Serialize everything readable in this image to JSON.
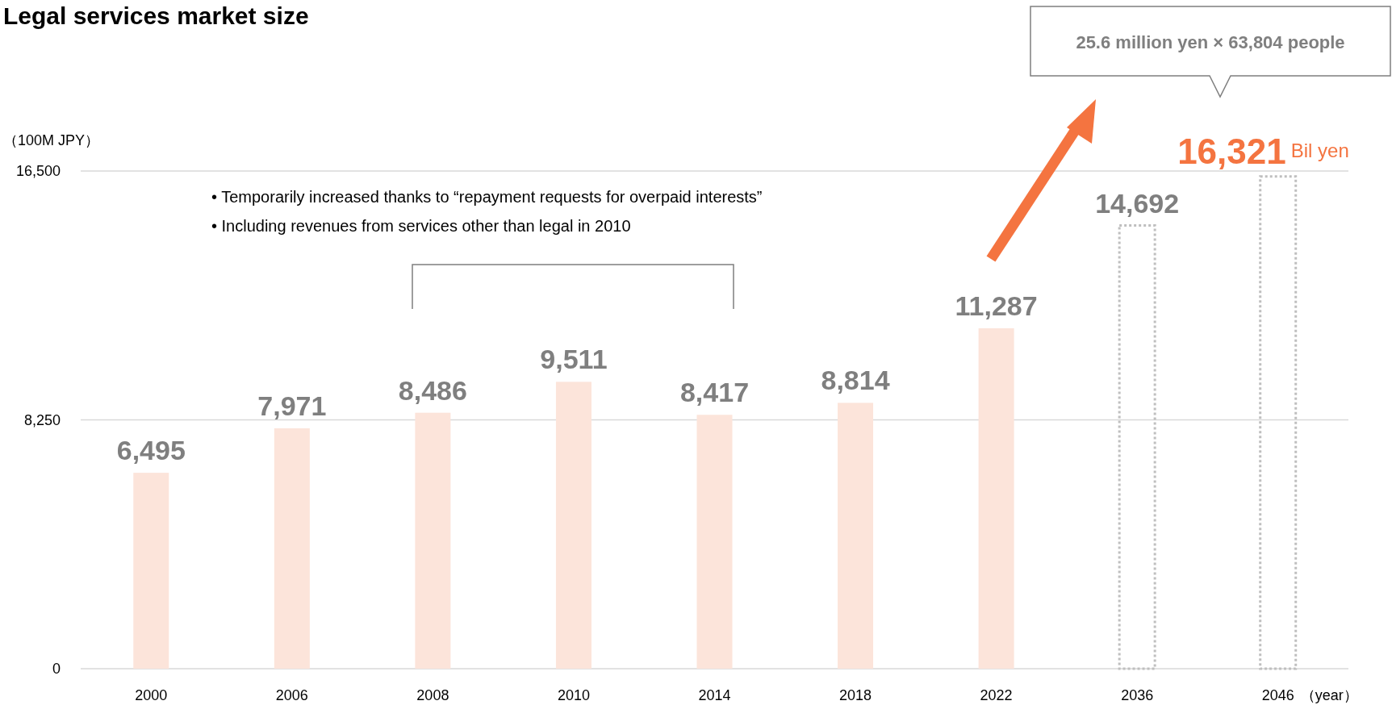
{
  "chart_data": {
    "type": "bar",
    "title": "Legal services market size",
    "ylabel": "（100M JPY）",
    "xlabel": "（year）",
    "categories": [
      "2000",
      "2006",
      "2008",
      "2010",
      "2014",
      "2018",
      "2022",
      "2036",
      "2046"
    ],
    "series": [
      {
        "color": "#fce4da",
        "values": [
          6495,
          7971,
          8486,
          9511,
          8417,
          8814,
          11287,
          null,
          null
        ],
        "value_labels": [
          "6,495",
          "7,971",
          "8,486",
          "9,511",
          "8,417",
          "8,814",
          "11,287",
          null,
          null
        ]
      },
      {
        "color": "#bfbfbf",
        "line_style": "dotted",
        "values": [
          null,
          null,
          null,
          null,
          null,
          null,
          null,
          14692,
          16321
        ],
        "value_labels": [
          null,
          null,
          null,
          null,
          null,
          null,
          null,
          "14,692",
          "16,321"
        ]
      }
    ],
    "ylim": [
      0,
      16500
    ],
    "yticks": [
      0,
      {
        "value": 8250,
        "label": "8,250"
      },
      {
        "value": 16500,
        "label": "16,500"
      }
    ],
    "grid": "y",
    "annotations": [
      "• Temporarily increased thanks to “repayment requests for overpaid interests”",
      "• Including revenues from services other than legal in 2010",
      "25.6 million yen × 63,804 people",
      {
        "text": "Bil yen",
        "x": "2046",
        "y": 16321
      }
    ]
  }
}
